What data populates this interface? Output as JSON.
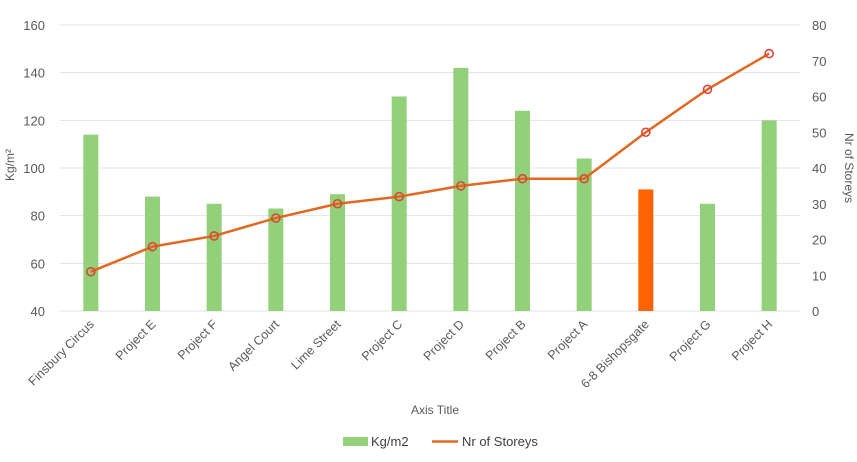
{
  "chart_data": {
    "type": "bar",
    "categories": [
      "Finsbury Circus",
      "Project E",
      "Project F",
      "Angel Court",
      "Lime Street",
      "Project C",
      "Project D",
      "Project B",
      "Project A",
      "6-8 Bishopsgate",
      "Project G",
      "Project H"
    ],
    "series": [
      {
        "name": "Kg/m2",
        "type": "bar",
        "axis": "left",
        "values": [
          114,
          88,
          85,
          83,
          89,
          130,
          142,
          124,
          104,
          91,
          85,
          120
        ],
        "color": "#92d07a",
        "highlight": {
          "index": 9,
          "color": "#fe6300"
        }
      },
      {
        "name": "Nr of Storeys",
        "type": "line",
        "axis": "right",
        "values": [
          11,
          18,
          21,
          26,
          30,
          32,
          35,
          37,
          37,
          50,
          62,
          72
        ],
        "color": "#e1681f",
        "marker": "circle"
      }
    ],
    "title": "",
    "xlabel": "Axis Title",
    "ylabel": "Kg/m²",
    "y2label": "Nr of Storeys",
    "ylim": [
      40,
      160
    ],
    "y2lim": [
      0,
      80
    ],
    "yticks": [
      40,
      60,
      80,
      100,
      120,
      140,
      160
    ],
    "y2ticks": [
      0,
      10,
      20,
      30,
      40,
      50,
      60,
      70,
      80
    ],
    "grid": true,
    "legend": "bottom-center"
  }
}
